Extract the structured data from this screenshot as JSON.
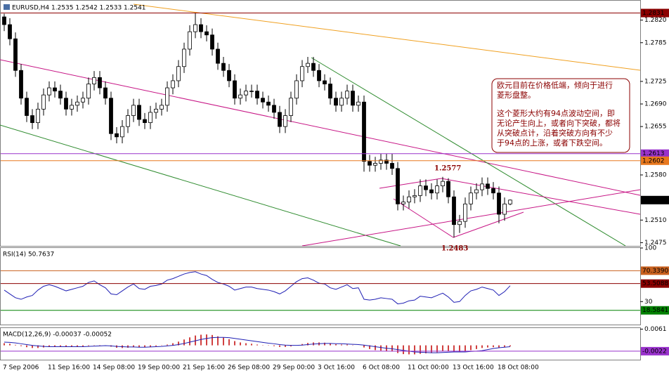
{
  "chart_data": [
    {
      "type": "candlestick",
      "title": "EURUSD,H4  1.2535 1.2542 1.2533 1.2541",
      "categories": [
        "7 Sep 2006",
        null,
        null,
        null,
        null,
        null,
        null,
        null,
        "11 Sep 16:00",
        null,
        null,
        null,
        null,
        null,
        null,
        null,
        "14 Sep 08:00",
        null,
        null,
        null,
        null,
        null,
        null,
        null,
        "19 Sep 00:00",
        null,
        null,
        null,
        null,
        null,
        null,
        null,
        "21 Sep 16:00",
        null,
        null,
        null,
        null,
        null,
        null,
        null,
        "26 Sep 08:00",
        null,
        null,
        null,
        null,
        null,
        null,
        null,
        "29 Sep 00:00",
        null,
        null,
        null,
        null,
        null,
        null,
        null,
        "3 Oct 16:00",
        null,
        null,
        null,
        null,
        null,
        null,
        null,
        "6 Oct 08:00",
        null,
        null,
        null,
        null,
        null,
        null,
        null,
        "11 Oct 00:00",
        null,
        null,
        null,
        null,
        null,
        null,
        null,
        "13 Oct 16:00",
        null,
        null,
        null,
        null,
        null,
        null,
        null,
        "18 Oct 08:00",
        null,
        null
      ],
      "open": [
        1.2825,
        1.2813,
        1.2791,
        1.2742,
        1.2699,
        1.2672,
        1.2661,
        1.2682,
        1.2704,
        1.2715,
        1.271,
        1.2699,
        1.2682,
        1.2688,
        1.2693,
        1.2699,
        1.2721,
        1.2731,
        1.2715,
        1.2699,
        1.2644,
        1.2639,
        1.2655,
        1.2672,
        1.2688,
        1.2666,
        1.2661,
        1.2677,
        1.2682,
        1.2688,
        1.2715,
        1.2726,
        1.2748,
        1.2775,
        1.2802,
        1.2813,
        1.2802,
        1.2797,
        1.2775,
        1.2753,
        1.2742,
        1.2726,
        1.2699,
        1.2704,
        1.271,
        1.271,
        1.2699,
        1.2693,
        1.2688,
        1.2677,
        1.2655,
        1.2672,
        1.2699,
        1.2726,
        1.2748,
        1.2753,
        1.2742,
        1.2726,
        1.2721,
        1.2699,
        1.2688,
        1.2699,
        1.271,
        1.2688,
        1.2693,
        1.2601,
        1.2595,
        1.2598,
        1.2603,
        1.2598,
        1.259,
        1.2535,
        1.2538,
        1.2546,
        1.2548,
        1.2563,
        1.2557,
        1.2552,
        1.2563,
        1.257,
        1.2546,
        1.2503,
        1.2508,
        1.2535,
        1.2552,
        1.2557,
        1.2566,
        1.2559,
        1.2552,
        1.2519,
        1.2535
      ],
      "high": [
        1.283,
        1.2823,
        1.2801,
        1.2752,
        1.2709,
        1.2682,
        1.2692,
        1.2714,
        1.2725,
        1.2725,
        1.272,
        1.2709,
        1.2698,
        1.2703,
        1.2709,
        1.2731,
        1.2741,
        1.2741,
        1.2725,
        1.2709,
        1.2654,
        1.2665,
        1.2682,
        1.2698,
        1.2698,
        1.2676,
        1.2687,
        1.2692,
        1.2698,
        1.2725,
        1.2736,
        1.2758,
        1.2785,
        1.2812,
        1.2831,
        1.2823,
        1.2812,
        1.2807,
        1.2785,
        1.2763,
        1.2752,
        1.2736,
        1.2714,
        1.272,
        1.272,
        1.272,
        1.2709,
        1.2703,
        1.2698,
        1.2687,
        1.2682,
        1.2709,
        1.2736,
        1.2758,
        1.2763,
        1.2763,
        1.2752,
        1.2736,
        1.2731,
        1.2709,
        1.2709,
        1.272,
        1.272,
        1.2703,
        1.2703,
        1.2611,
        1.2608,
        1.2613,
        1.2613,
        1.2613,
        1.26,
        1.2548,
        1.2556,
        1.2558,
        1.2573,
        1.2573,
        1.2567,
        1.2573,
        1.2577,
        1.2575,
        1.2556,
        1.2518,
        1.2545,
        1.2562,
        1.2567,
        1.2576,
        1.2576,
        1.2569,
        1.2562,
        1.2545,
        1.2542
      ],
      "low": [
        1.2803,
        1.2781,
        1.2732,
        1.2689,
        1.2662,
        1.2651,
        1.2651,
        1.2672,
        1.2694,
        1.27,
        1.2689,
        1.2672,
        1.2672,
        1.2678,
        1.2683,
        1.2689,
        1.2711,
        1.2705,
        1.2689,
        1.2634,
        1.2629,
        1.2629,
        1.2645,
        1.2662,
        1.2656,
        1.2651,
        1.2651,
        1.2667,
        1.2672,
        1.2678,
        1.2705,
        1.2716,
        1.2738,
        1.2765,
        1.2792,
        1.2792,
        1.2787,
        1.2765,
        1.2743,
        1.2732,
        1.2716,
        1.2689,
        1.2689,
        1.2694,
        1.27,
        1.2689,
        1.2683,
        1.2678,
        1.2667,
        1.2645,
        1.2645,
        1.2662,
        1.2689,
        1.2716,
        1.2738,
        1.2732,
        1.2716,
        1.2711,
        1.2689,
        1.2678,
        1.2678,
        1.2689,
        1.2678,
        1.2678,
        1.2585,
        1.2585,
        1.2585,
        1.2588,
        1.2588,
        1.258,
        1.2525,
        1.2525,
        1.2528,
        1.2536,
        1.2538,
        1.2547,
        1.2542,
        1.2542,
        1.2553,
        1.2536,
        1.2483,
        1.249,
        1.2498,
        1.2525,
        1.2542,
        1.2547,
        1.2549,
        1.2542,
        1.2505,
        1.2509,
        1.2533
      ],
      "close": [
        1.2813,
        1.2791,
        1.2742,
        1.2699,
        1.2672,
        1.2661,
        1.2682,
        1.2704,
        1.2715,
        1.271,
        1.2699,
        1.2682,
        1.2688,
        1.2693,
        1.2699,
        1.2721,
        1.2731,
        1.2715,
        1.2699,
        1.2644,
        1.2639,
        1.2655,
        1.2672,
        1.2688,
        1.2666,
        1.2661,
        1.2677,
        1.2682,
        1.2688,
        1.2715,
        1.2726,
        1.2748,
        1.2775,
        1.2802,
        1.2813,
        1.2802,
        1.2797,
        1.2775,
        1.2753,
        1.2742,
        1.2726,
        1.2699,
        1.2704,
        1.271,
        1.271,
        1.2699,
        1.2693,
        1.2688,
        1.2677,
        1.2655,
        1.2672,
        1.2699,
        1.2726,
        1.2748,
        1.2753,
        1.2742,
        1.2726,
        1.2721,
        1.2699,
        1.2688,
        1.2699,
        1.271,
        1.2688,
        1.2693,
        1.2601,
        1.2595,
        1.2598,
        1.2603,
        1.2598,
        1.259,
        1.2535,
        1.2538,
        1.2546,
        1.2548,
        1.2563,
        1.2557,
        1.2552,
        1.2563,
        1.257,
        1.2546,
        1.2503,
        1.2508,
        1.2535,
        1.2552,
        1.2557,
        1.2566,
        1.2559,
        1.2552,
        1.2519,
        1.2535,
        1.2541
      ],
      "up_color": "#ffffff",
      "down_color": "#000000",
      "wick_color": "#000000",
      "ylim": [
        1.247,
        1.2849
      ],
      "yticks": [
        {
          "value": 1.282,
          "label": "1.2820"
        },
        1.2785,
        1.2725,
        {
          "value": 1.269,
          "label": "1.2690"
        },
        1.2655,
        {
          "value": 1.258,
          "label": "1.2580"
        },
        {
          "value": 1.251,
          "label": "1.2510"
        },
        1.2475
      ],
      "hlines": [
        {
          "value": 1.2831,
          "color": "#8b0000"
        },
        {
          "value": 1.2613,
          "color": "#9932cc"
        },
        {
          "value": 1.2602,
          "color": "#e8781e"
        }
      ],
      "annotations": [
        "1.2577",
        "1.2483"
      ],
      "note": [
        "欧元目前在价格低端，倾向于进行",
        "菱形盘整。",
        "这个菱形大约有94点波动空间，即",
        "无论产生向上，或者向下突破，都将",
        "从突破点计，沿着突破方向有不少",
        "于94点的上涨，或者下跌空间。"
      ]
    },
    {
      "type": "line",
      "title": "RSI(14) 50.7637",
      "series": [
        {
          "color": "#1f1fb4",
          "values": [
            45,
            40,
            35,
            33,
            36,
            38,
            45,
            50,
            52,
            50,
            47,
            44,
            46,
            48,
            50,
            55,
            57,
            52,
            48,
            40,
            39,
            44,
            49,
            53,
            47,
            46,
            50,
            51,
            53,
            58,
            60,
            63,
            66,
            68,
            69,
            66,
            64,
            59,
            55,
            53,
            50,
            45,
            47,
            49,
            49,
            47,
            46,
            45,
            43,
            40,
            44,
            50,
            56,
            60,
            61,
            58,
            54,
            53,
            48,
            46,
            49,
            52,
            47,
            48,
            33,
            32,
            33,
            35,
            34,
            33,
            27,
            28,
            31,
            32,
            37,
            36,
            35,
            38,
            41,
            36,
            29,
            30,
            38,
            44,
            46,
            49,
            47,
            45,
            38,
            43,
            50.7637
          ]
        }
      ],
      "ylim": [
        0,
        100
      ],
      "yticks": [
        100,
        30
      ],
      "hlines": [
        {
          "value": 70.339,
          "label": "70.3390",
          "color": "#c8601e"
        },
        {
          "value": 53.5088,
          "color": "#8b0000"
        },
        {
          "value": 18.5841,
          "color": "#008000"
        }
      ]
    },
    {
      "type": "macd",
      "title": "MACD(12,26,9) -0.00037 -0.00052",
      "series": [
        {
          "color": "#c00000",
          "values": [
            0.0008,
            0.0006,
            0.0002,
            -0.0003,
            -0.0007,
            -0.001,
            -0.001,
            -0.0008,
            -0.0006,
            -0.0005,
            -0.0005,
            -0.0006,
            -0.0006,
            -0.0005,
            -0.0004,
            -0.0002,
            0.0001,
            0.0001,
            0,
            -0.0005,
            -0.0009,
            -0.001,
            -0.0009,
            -0.0007,
            -0.0007,
            -0.0007,
            -0.0005,
            -0.0003,
            -0.0001,
            0.0003,
            0.0008,
            0.0014,
            0.0022,
            0.003,
            0.0037,
            0.004,
            0.0041,
            0.0039,
            0.0034,
            0.0029,
            0.0023,
            0.0016,
            0.0011,
            0.0008,
            0.0006,
            0.0003,
            0.0001,
            -0.0001,
            -0.0003,
            -0.0006,
            -0.0006,
            -0.0004,
            0,
            0.0005,
            0.0009,
            0.0011,
            0.0011,
            0.001,
            0.0007,
            0.0004,
            0.0003,
            0.0003,
            0.0001,
            0,
            -0.0008,
            -0.0014,
            -0.0018,
            -0.002,
            -0.0022,
            -0.0023,
            -0.0029,
            -0.0033,
            -0.0034,
            -0.0034,
            -0.0032,
            -0.003,
            -0.0029,
            -0.0026,
            -0.0022,
            -0.0021,
            -0.0024,
            -0.0025,
            -0.0022,
            -0.0018,
            -0.0014,
            -0.001,
            -0.0008,
            -0.0007,
            -0.0008,
            -0.0006,
            -0.00037
          ]
        },
        {
          "color": "#1f1fb4",
          "values": [
            0.0012,
            0.0011,
            0.0009,
            0.0006,
            0.0003,
            0,
            -0.0002,
            -0.0004,
            -0.0005,
            -0.0005,
            -0.0005,
            -0.0005,
            -0.0005,
            -0.0005,
            -0.0005,
            -0.0004,
            -0.0003,
            -0.0002,
            -0.0001,
            -0.0002,
            -0.0004,
            -0.0005,
            -0.0006,
            -0.0006,
            -0.0007,
            -0.0007,
            -0.0006,
            -0.0005,
            -0.0004,
            -0.0002,
            0,
            0.0003,
            0.0007,
            0.0012,
            0.0017,
            0.0022,
            0.0026,
            0.0029,
            0.003,
            0.003,
            0.0029,
            0.0026,
            0.0023,
            0.002,
            0.0017,
            0.0014,
            0.0011,
            0.0008,
            0.0006,
            0.0003,
            0.0001,
            0,
            0,
            0.0001,
            0.0003,
            0.0005,
            0.0006,
            0.0007,
            0.0007,
            0.0006,
            0.0006,
            0.0005,
            0.0004,
            0.0003,
            0.0001,
            -0.0002,
            -0.0005,
            -0.0008,
            -0.0011,
            -0.0013,
            -0.0016,
            -0.0019,
            -0.0022,
            -0.0025,
            -0.0026,
            -0.0027,
            -0.0028,
            -0.0028,
            -0.0027,
            -0.0026,
            -0.0025,
            -0.0025,
            -0.0025,
            -0.0023,
            -0.0022,
            -0.002,
            -0.0016,
            -0.0012,
            -0.0009,
            -0.0007,
            -0.00052
          ]
        }
      ],
      "ylim": [
        -0.0054,
        0.0065
      ],
      "yticks": [
        0.0061
      ],
      "hlines": [
        {
          "value": -0.0022,
          "color": "#9932cc"
        }
      ]
    }
  ]
}
